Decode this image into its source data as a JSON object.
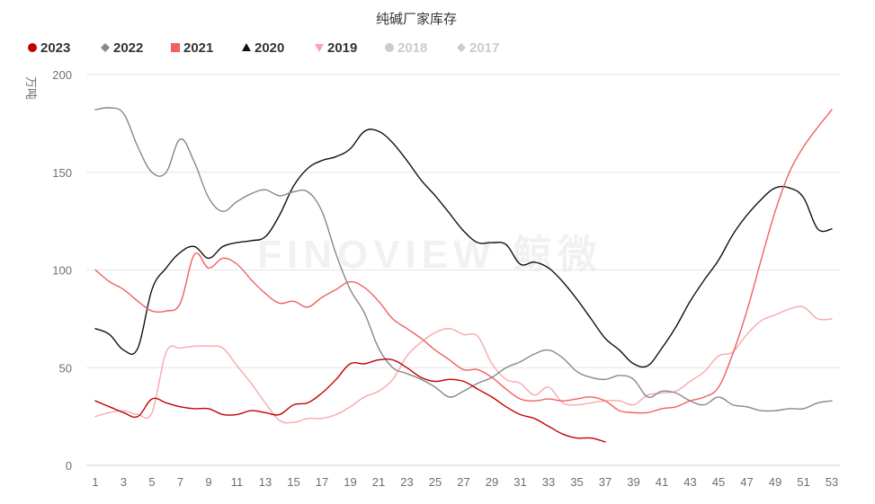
{
  "chart_data": {
    "type": "line",
    "title": "纯碱厂家库存",
    "ylabel": "万吨",
    "xlabel": "",
    "ylim": [
      0,
      200
    ],
    "yticks": [
      0,
      50,
      100,
      150,
      200
    ],
    "xlim": [
      1,
      53
    ],
    "xticks": [
      1,
      3,
      5,
      7,
      9,
      11,
      13,
      15,
      17,
      19,
      21,
      23,
      25,
      27,
      29,
      31,
      33,
      35,
      37,
      39,
      41,
      43,
      45,
      47,
      49,
      51,
      53
    ],
    "watermark": "FINOVIEW 鲸微",
    "legend_position": "top-left",
    "series": [
      {
        "name": "2023",
        "color": "#c00000",
        "marker": "circle",
        "enabled": true,
        "x": [
          1,
          2,
          3,
          4,
          5,
          6,
          7,
          8,
          9,
          10,
          11,
          12,
          13,
          14,
          15,
          16,
          17,
          18,
          19,
          20,
          21,
          22,
          23,
          24,
          25,
          26,
          27,
          28,
          29,
          30,
          31,
          32,
          33,
          34,
          35,
          36,
          37
        ],
        "values": [
          33,
          30,
          27,
          25,
          34,
          32,
          30,
          29,
          29,
          26,
          26,
          28,
          27,
          26,
          31,
          32,
          37,
          44,
          52,
          52,
          54,
          54,
          50,
          45,
          43,
          44,
          43,
          39,
          35,
          30,
          26,
          24,
          20,
          16,
          14,
          14,
          12
        ]
      },
      {
        "name": "2022",
        "color": "#888888",
        "marker": "diamond",
        "enabled": true,
        "x": [
          1,
          2,
          3,
          4,
          5,
          6,
          7,
          8,
          9,
          10,
          11,
          12,
          13,
          14,
          15,
          16,
          17,
          18,
          19,
          20,
          21,
          22,
          23,
          24,
          25,
          26,
          27,
          28,
          29,
          30,
          31,
          32,
          33,
          34,
          35,
          36,
          37,
          38,
          39,
          40,
          41,
          42,
          43,
          44,
          45,
          46,
          47,
          48,
          49,
          50,
          51,
          52,
          53
        ],
        "values": [
          182,
          183,
          180,
          163,
          150,
          150,
          167,
          155,
          137,
          130,
          135,
          139,
          141,
          138,
          140,
          140,
          130,
          108,
          90,
          78,
          60,
          50,
          47,
          44,
          40,
          35,
          38,
          42,
          45,
          50,
          53,
          57,
          59,
          55,
          48,
          45,
          44,
          46,
          44,
          35,
          38,
          37,
          33,
          31,
          35,
          31,
          30,
          28,
          28,
          29,
          29,
          32,
          33
        ]
      },
      {
        "name": "2021",
        "color": "#f06060",
        "marker": "square",
        "enabled": true,
        "x": [
          1,
          2,
          3,
          4,
          5,
          6,
          7,
          8,
          9,
          10,
          11,
          12,
          13,
          14,
          15,
          16,
          17,
          18,
          19,
          20,
          21,
          22,
          23,
          24,
          25,
          26,
          27,
          28,
          29,
          30,
          31,
          32,
          33,
          34,
          35,
          36,
          37,
          38,
          39,
          40,
          41,
          42,
          43,
          44,
          45,
          46,
          47,
          48,
          49,
          50,
          51,
          52,
          53
        ],
        "values": [
          100,
          94,
          90,
          84,
          79,
          79,
          83,
          108,
          101,
          106,
          103,
          95,
          88,
          83,
          84,
          81,
          86,
          90,
          94,
          91,
          84,
          75,
          70,
          65,
          59,
          54,
          49,
          49,
          45,
          39,
          34,
          33,
          34,
          33,
          34,
          35,
          33,
          28,
          27,
          27,
          29,
          30,
          33,
          35,
          40,
          57,
          79,
          105,
          130,
          150,
          163,
          173,
          182
        ]
      },
      {
        "name": "2020",
        "color": "#111111",
        "marker": "triangle",
        "enabled": true,
        "x": [
          1,
          2,
          3,
          4,
          5,
          6,
          7,
          8,
          9,
          10,
          11,
          12,
          13,
          14,
          15,
          16,
          17,
          18,
          19,
          20,
          21,
          22,
          23,
          24,
          25,
          26,
          27,
          28,
          29,
          30,
          31,
          32,
          33,
          34,
          35,
          36,
          37,
          38,
          39,
          40,
          41,
          42,
          43,
          44,
          45,
          46,
          47,
          48,
          49,
          50,
          51,
          52,
          53
        ],
        "values": [
          70,
          67,
          59,
          60,
          90,
          101,
          109,
          112,
          106,
          112,
          114,
          115,
          117,
          128,
          143,
          152,
          156,
          158,
          162,
          171,
          171,
          165,
          156,
          146,
          138,
          129,
          120,
          114,
          114,
          113,
          103,
          104,
          101,
          94,
          85,
          75,
          65,
          59,
          52,
          51,
          60,
          71,
          84,
          95,
          105,
          118,
          128,
          136,
          142,
          142,
          137,
          121,
          121
        ]
      },
      {
        "name": "2019",
        "color": "#f7a8ac",
        "marker": "triangle-down",
        "enabled": true,
        "x": [
          1,
          2,
          3,
          4,
          5,
          6,
          7,
          8,
          9,
          10,
          11,
          12,
          13,
          14,
          15,
          16,
          17,
          18,
          19,
          20,
          21,
          22,
          23,
          24,
          25,
          26,
          27,
          28,
          29,
          30,
          31,
          32,
          33,
          34,
          35,
          36,
          37,
          38,
          39,
          40,
          41,
          42,
          43,
          44,
          45,
          46,
          47,
          48,
          49,
          50,
          51,
          52,
          53
        ],
        "values": [
          25,
          27,
          28,
          26,
          27,
          58,
          60,
          61,
          61,
          60,
          51,
          42,
          32,
          23,
          22,
          24,
          24,
          26,
          30,
          35,
          38,
          44,
          56,
          63,
          68,
          70,
          67,
          66,
          52,
          44,
          42,
          36,
          40,
          32,
          31,
          32,
          33,
          33,
          31,
          36,
          37,
          38,
          43,
          48,
          56,
          58,
          67,
          74,
          77,
          80,
          81,
          75,
          75
        ]
      },
      {
        "name": "2018",
        "color": "#cccccc",
        "marker": "circle",
        "enabled": false,
        "x": [],
        "values": []
      },
      {
        "name": "2017",
        "color": "#cccccc",
        "marker": "diamond",
        "enabled": false,
        "x": [],
        "values": []
      }
    ]
  }
}
